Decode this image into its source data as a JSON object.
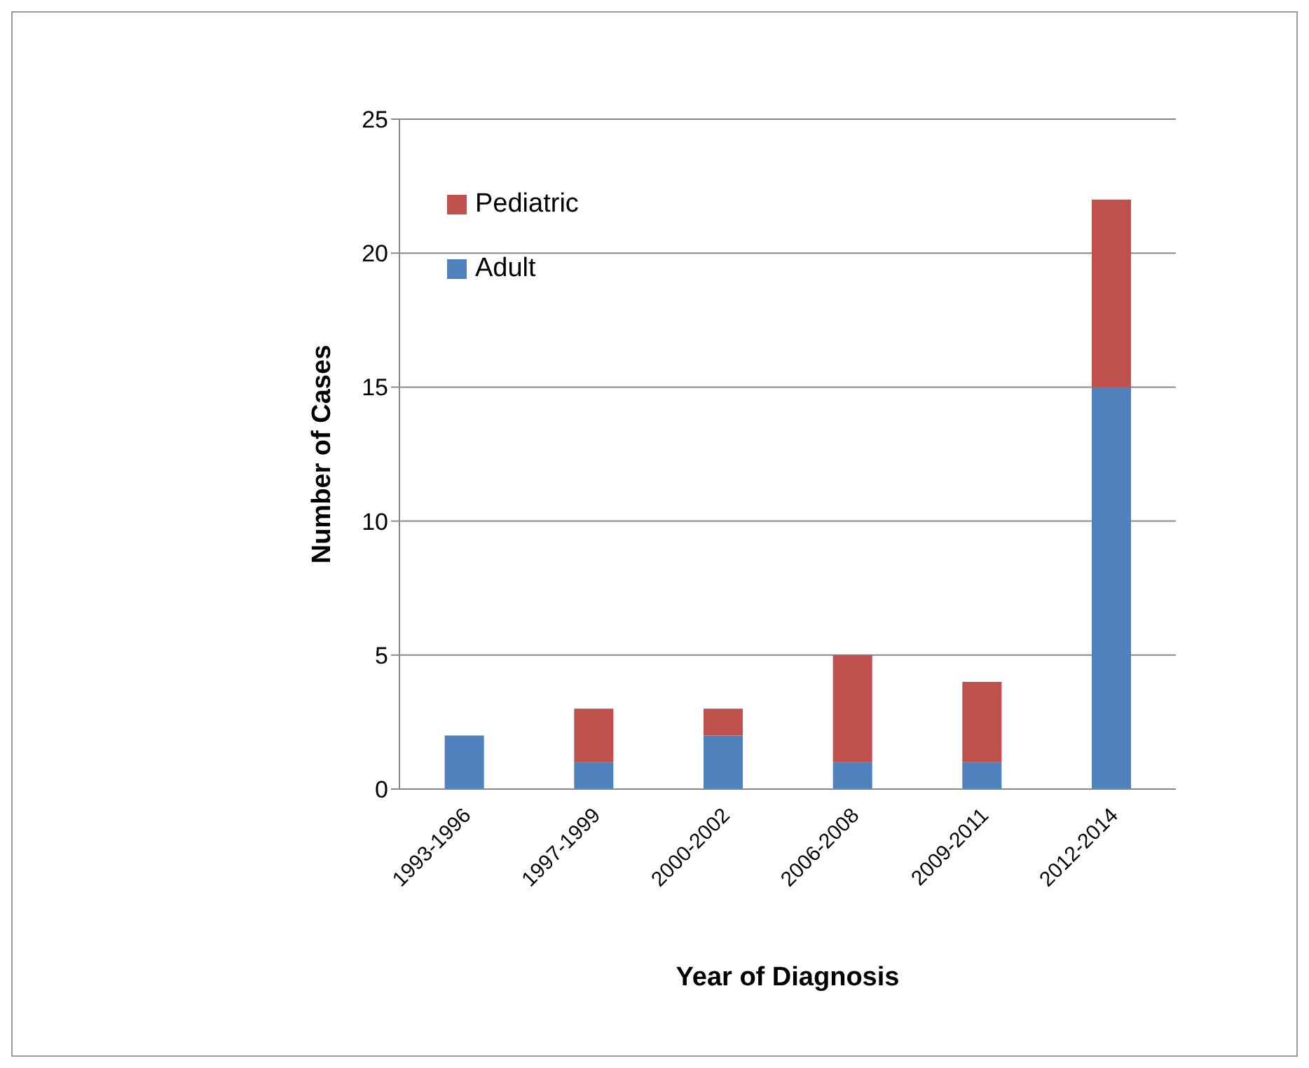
{
  "chart_data": {
    "type": "bar",
    "stacked": true,
    "xlabel": "Year of Diagnosis",
    "ylabel": "Number of Cases",
    "categories": [
      "1993-1996",
      "1997-1999",
      "2000-2002",
      "2006-2008",
      "2009-2011",
      "2012-2014"
    ],
    "series": [
      {
        "name": "Adult",
        "color": "#4f81bd",
        "values": [
          2,
          1,
          2,
          1,
          1,
          15
        ]
      },
      {
        "name": "Pediatric",
        "color": "#c0504d",
        "values": [
          0,
          2,
          1,
          4,
          3,
          7
        ]
      }
    ],
    "ylim": [
      0,
      25
    ],
    "yticks": [
      0,
      5,
      10,
      15,
      20,
      25
    ],
    "grid": "y",
    "legend": "top left"
  }
}
